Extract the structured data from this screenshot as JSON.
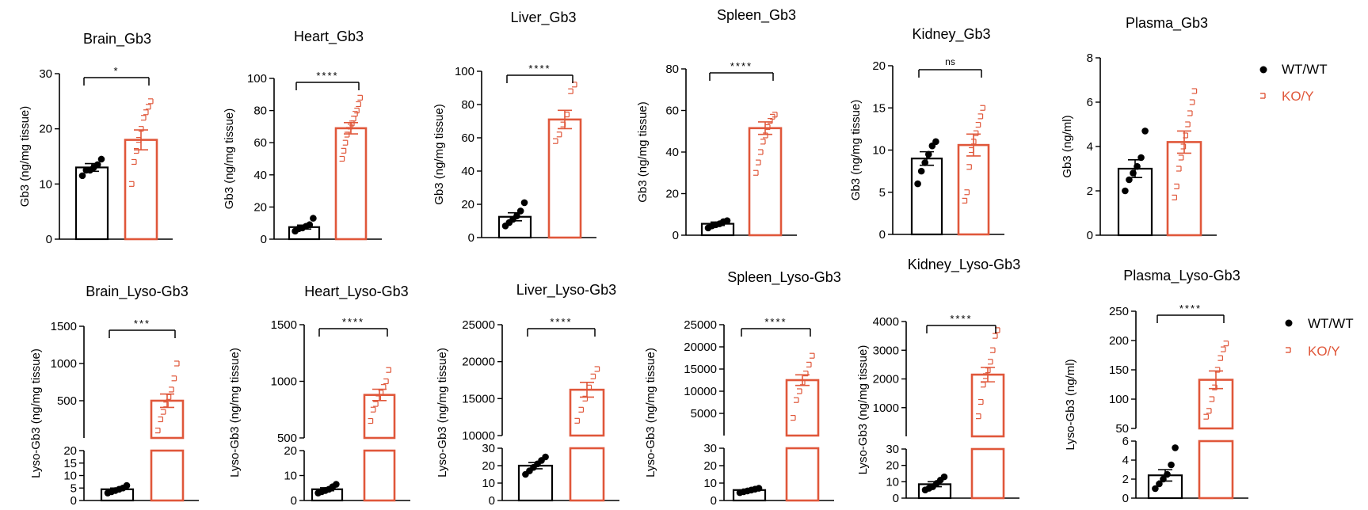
{
  "colors": {
    "wt": "#000000",
    "ko": "#e0573a"
  },
  "legend": {
    "wt_label": "WT/WT",
    "ko_label": "KO/Y"
  },
  "chart_data": [
    {
      "type": "bar",
      "title": "Brain_Gb3",
      "ylabel": "Gb3 (ng/mg tissue)",
      "ylim": [
        0,
        30
      ],
      "yticks": [
        "0",
        "10",
        "20",
        "30"
      ],
      "tickvals": [
        0,
        10,
        20,
        30
      ],
      "significance": "*",
      "series": [
        {
          "name": "WT/WT",
          "mean": 13,
          "sem": 0.7,
          "points": [
            11.5,
            12.5,
            12.5,
            13.0,
            13.5,
            14.5
          ]
        },
        {
          "name": "KO/Y",
          "mean": 18,
          "sem": 1.8,
          "points": [
            10,
            14,
            16,
            18,
            20,
            22,
            23,
            24,
            25
          ]
        }
      ]
    },
    {
      "type": "bar",
      "title": "Heart_Gb3",
      "ylabel": "Gb3 (ng/mg tissue)",
      "ylim": [
        0,
        100
      ],
      "yticks": [
        "0",
        "20",
        "40",
        "60",
        "80",
        "100"
      ],
      "tickvals": [
        0,
        20,
        40,
        60,
        80,
        100
      ],
      "significance": "****",
      "series": [
        {
          "name": "WT/WT",
          "mean": 7.5,
          "sem": 1.2,
          "points": [
            5,
            6.5,
            7,
            8,
            9,
            13
          ]
        },
        {
          "name": "KO/Y",
          "mean": 69,
          "sem": 3.5,
          "points": [
            50,
            55,
            60,
            65,
            68,
            70,
            72,
            75,
            78,
            80,
            84,
            88
          ]
        }
      ]
    },
    {
      "type": "bar",
      "title": "Liver_Gb3",
      "ylabel": "Gb3 (ng/mg tissue)",
      "ylim": [
        0,
        100
      ],
      "yticks": [
        "0",
        "20",
        "40",
        "60",
        "80",
        "100"
      ],
      "tickvals": [
        0,
        20,
        40,
        60,
        80,
        100
      ],
      "significance": "****",
      "series": [
        {
          "name": "WT/WT",
          "mean": 12.5,
          "sem": 2.4,
          "points": [
            7,
            9,
            11,
            13,
            16,
            21
          ]
        },
        {
          "name": "KO/Y",
          "mean": 71,
          "sem": 5.5,
          "points": [
            58,
            62,
            68,
            74,
            88,
            92
          ]
        }
      ]
    },
    {
      "type": "bar",
      "title": "Spleen_Gb3",
      "ylabel": "Gb3 (ng/mg tissue)",
      "ylim": [
        0,
        80
      ],
      "yticks": [
        "0",
        "20",
        "40",
        "60",
        "80"
      ],
      "tickvals": [
        0,
        20,
        40,
        60,
        80
      ],
      "significance": "****",
      "series": [
        {
          "name": "WT/WT",
          "mean": 5.5,
          "sem": 0.8,
          "points": [
            3.5,
            4.5,
            5,
            5.5,
            6.5,
            7
          ]
        },
        {
          "name": "KO/Y",
          "mean": 51.5,
          "sem": 3.0,
          "points": [
            30,
            35,
            40,
            45,
            48,
            52,
            55,
            57,
            58
          ]
        }
      ]
    },
    {
      "type": "bar",
      "title": "Kidney_Gb3",
      "ylabel": "Gb3 (ng/mg tissue)",
      "ylim": [
        0,
        20
      ],
      "yticks": [
        "0",
        "5",
        "10",
        "15",
        "20"
      ],
      "tickvals": [
        0,
        5,
        10,
        15,
        20
      ],
      "significance": "ns",
      "series": [
        {
          "name": "WT/WT",
          "mean": 9,
          "sem": 0.8,
          "points": [
            6,
            7.5,
            8.5,
            9.5,
            10.5,
            11
          ]
        },
        {
          "name": "KO/Y",
          "mean": 10.6,
          "sem": 1.3,
          "points": [
            4,
            5,
            8,
            10,
            11,
            12,
            13,
            14,
            15
          ]
        }
      ]
    },
    {
      "type": "bar",
      "title": "Plasma_Gb3",
      "ylabel": "Gb3 (ng/ml)",
      "ylim": [
        0,
        8
      ],
      "yticks": [
        "0",
        "2",
        "4",
        "6",
        "8"
      ],
      "tickvals": [
        0,
        2,
        4,
        6,
        8
      ],
      "significance": "",
      "series": [
        {
          "name": "WT/WT",
          "mean": 3,
          "sem": 0.4,
          "points": [
            2.0,
            2.5,
            2.8,
            3.1,
            3.5,
            4.7
          ]
        },
        {
          "name": "KO/Y",
          "mean": 4.2,
          "sem": 0.5,
          "points": [
            1.7,
            2.2,
            3.0,
            3.5,
            4.0,
            4.5,
            5.0,
            5.5,
            6.0,
            6.5
          ]
        }
      ]
    },
    {
      "type": "bar",
      "title": "Brain_Lyso-Gb3",
      "ylabel": "Lyso-Gb3 (ng/mg tissue)",
      "split_axis": true,
      "lower": {
        "ylim": [
          0,
          20
        ],
        "yticks": [
          "0",
          "5",
          "10",
          "15",
          "20"
        ],
        "tickvals": [
          0,
          5,
          10,
          15,
          20
        ]
      },
      "upper": {
        "ylim": [
          0,
          1500
        ],
        "yticks": [
          "500",
          "1000",
          "1500"
        ],
        "tickvals": [
          500,
          1000,
          1500
        ]
      },
      "significance": "***",
      "series": [
        {
          "name": "WT/WT",
          "mean": 4.5,
          "sem": 0.5,
          "points": [
            3.0,
            3.5,
            4.0,
            4.5,
            5.0,
            6.0
          ]
        },
        {
          "name": "KO/Y",
          "mean": 500,
          "sem": 90,
          "points": [
            100,
            250,
            350,
            450,
            550,
            650,
            800,
            1000
          ]
        }
      ]
    },
    {
      "type": "bar",
      "title": "Heart_Lyso-Gb3",
      "ylabel": "Lyso-Gb3 (ng/mg tissue)",
      "split_axis": true,
      "lower": {
        "ylim": [
          0,
          20
        ],
        "yticks": [
          "0",
          "10",
          "20"
        ],
        "tickvals": [
          0,
          10,
          20
        ]
      },
      "upper": {
        "ylim": [
          500,
          1500
        ],
        "yticks": [
          "500",
          "1000",
          "1500"
        ],
        "tickvals": [
          500,
          1000,
          1500
        ]
      },
      "significance": "****",
      "series": [
        {
          "name": "WT/WT",
          "mean": 4.5,
          "sem": 0.6,
          "points": [
            3.0,
            3.5,
            4.0,
            4.5,
            5.5,
            6.5
          ]
        },
        {
          "name": "KO/Y",
          "mean": 880,
          "sem": 50,
          "points": [
            650,
            750,
            800,
            850,
            900,
            950,
            1000,
            1100
          ]
        }
      ]
    },
    {
      "type": "bar",
      "title": "Liver_Lyso-Gb3",
      "ylabel": "Lyso-Gb3 (ng/mg tissue)",
      "split_axis": true,
      "lower": {
        "ylim": [
          0,
          30
        ],
        "yticks": [
          "0",
          "10",
          "20",
          "30"
        ],
        "tickvals": [
          0,
          10,
          20,
          30
        ]
      },
      "upper": {
        "ylim": [
          10000,
          25000
        ],
        "yticks": [
          "10000",
          "15000",
          "20000",
          "25000"
        ],
        "tickvals": [
          10000,
          15000,
          20000,
          25000
        ]
      },
      "significance": "****",
      "series": [
        {
          "name": "WT/WT",
          "mean": 20,
          "sem": 1.8,
          "points": [
            15,
            17,
            19,
            21,
            23,
            25
          ]
        },
        {
          "name": "KO/Y",
          "mean": 16200,
          "sem": 1000,
          "points": [
            12000,
            13500,
            15000,
            16500,
            18000,
            19000
          ]
        }
      ]
    },
    {
      "type": "bar",
      "title": "Spleen_Lyso-Gb3",
      "ylabel": "Lyso-Gb3 (ng/mg tissue)",
      "split_axis": true,
      "lower": {
        "ylim": [
          0,
          30
        ],
        "yticks": [
          "0",
          "10",
          "20",
          "30"
        ],
        "tickvals": [
          0,
          10,
          20,
          30
        ]
      },
      "upper": {
        "ylim": [
          0,
          25000
        ],
        "yticks": [
          "5000",
          "10000",
          "15000",
          "20000",
          "25000"
        ],
        "tickvals": [
          5000,
          10000,
          15000,
          20000,
          25000
        ]
      },
      "significance": "****",
      "series": [
        {
          "name": "WT/WT",
          "mean": 6,
          "sem": 0.5,
          "points": [
            4.5,
            5.0,
            5.5,
            6.0,
            6.5,
            7.0
          ]
        },
        {
          "name": "KO/Y",
          "mean": 12500,
          "sem": 1200,
          "points": [
            4000,
            8000,
            10000,
            12000,
            14000,
            16000,
            18000
          ]
        }
      ]
    },
    {
      "type": "bar",
      "title": "Kidney_Lyso-Gb3",
      "ylabel": "Lyso-Gb3 (ng/mg tissue)",
      "split_axis": true,
      "lower": {
        "ylim": [
          0,
          30
        ],
        "yticks": [
          "0",
          "10",
          "20",
          "30"
        ],
        "tickvals": [
          0,
          10,
          20,
          30
        ]
      },
      "upper": {
        "ylim": [
          0,
          4000
        ],
        "yticks": [
          "1000",
          "2000",
          "3000",
          "4000"
        ],
        "tickvals": [
          1000,
          2000,
          3000,
          4000
        ]
      },
      "significance": "****",
      "series": [
        {
          "name": "WT/WT",
          "mean": 8.5,
          "sem": 1.5,
          "points": [
            5,
            6,
            7,
            9,
            11,
            13
          ]
        },
        {
          "name": "KO/Y",
          "mean": 2150,
          "sem": 250,
          "points": [
            700,
            1200,
            1800,
            2100,
            2300,
            2600,
            3000,
            3500,
            3700
          ]
        }
      ]
    },
    {
      "type": "bar",
      "title": "Plasma_Lyso-Gb3",
      "ylabel": "Lyso-Gb3 (ng/ml)",
      "split_axis": true,
      "lower": {
        "ylim": [
          0,
          6
        ],
        "yticks": [
          "0",
          "2",
          "4",
          "6"
        ],
        "tickvals": [
          0,
          2,
          4,
          6
        ]
      },
      "upper": {
        "ylim": [
          50,
          250
        ],
        "yticks": [
          "50",
          "100",
          "150",
          "200",
          "250"
        ],
        "tickvals": [
          50,
          100,
          150,
          200,
          250
        ]
      },
      "significance": "****",
      "series": [
        {
          "name": "WT/WT",
          "mean": 2.4,
          "sem": 0.6,
          "points": [
            1.0,
            1.5,
            2.0,
            2.5,
            3.5,
            5.3
          ]
        },
        {
          "name": "KO/Y",
          "mean": 133,
          "sem": 15,
          "points": [
            70,
            80,
            100,
            120,
            150,
            170,
            185,
            195
          ]
        }
      ]
    }
  ]
}
